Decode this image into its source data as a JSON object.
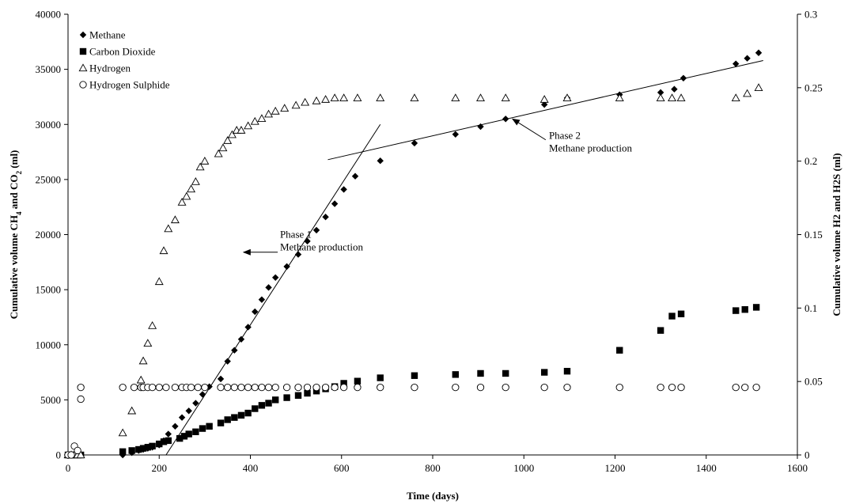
{
  "chart_data": {
    "type": "scatter",
    "title": "",
    "xlabel": "Time (days)",
    "ylabel": "Cumulative volume CH4 and CO2 (ml)",
    "ylabel_parts": [
      "Cumulative volume CH",
      "4",
      " and CO",
      "2",
      " (ml)"
    ],
    "y2label": "Cumulative volume H2 and H2S (ml)",
    "xlim": [
      0,
      1600
    ],
    "ylim": [
      0,
      40000
    ],
    "y2lim": [
      0,
      0.3
    ],
    "xticks": [
      "0",
      "200",
      "400",
      "600",
      "800",
      "1000",
      "1200",
      "1400",
      "1600"
    ],
    "yticks": [
      "0",
      "5000",
      "10000",
      "15000",
      "20000",
      "25000",
      "30000",
      "35000",
      "40000"
    ],
    "y2ticks": [
      "0",
      "0.05",
      "0.1",
      "0.15",
      "0.2",
      "0.25",
      "0.3"
    ],
    "grid": false,
    "legend_position": "top-left",
    "series": [
      {
        "name": "Methane",
        "marker": "diamond",
        "axis": "left",
        "color": "#000000",
        "x": [
          0,
          7,
          14,
          21,
          28,
          120,
          140,
          155,
          165,
          175,
          185,
          200,
          210,
          220,
          235,
          250,
          265,
          280,
          295,
          310,
          335,
          350,
          365,
          380,
          395,
          410,
          425,
          440,
          455,
          480,
          505,
          525,
          545,
          565,
          585,
          605,
          630,
          685,
          760,
          850,
          905,
          960,
          1045,
          1095,
          1210,
          1300,
          1330,
          1350,
          1465,
          1490,
          1515
        ],
        "y": [
          0,
          0,
          0,
          0,
          0,
          0,
          200,
          400,
          500,
          600,
          700,
          900,
          1300,
          1900,
          2600,
          3400,
          4000,
          4700,
          5500,
          6200,
          6900,
          8500,
          9500,
          10500,
          11600,
          13000,
          14100,
          15200,
          16100,
          17100,
          18200,
          19400,
          20400,
          21600,
          22800,
          24100,
          25300,
          26700,
          28300,
          29100,
          29800,
          30500,
          31800,
          32400,
          32700,
          32900,
          33200,
          34200,
          35500,
          36000,
          36500
        ]
      },
      {
        "name": "Carbon Dioxide",
        "marker": "square",
        "axis": "left",
        "color": "#000000",
        "x": [
          0,
          7,
          14,
          21,
          28,
          120,
          140,
          155,
          165,
          175,
          185,
          200,
          210,
          220,
          245,
          255,
          265,
          280,
          295,
          310,
          335,
          350,
          365,
          380,
          395,
          410,
          425,
          440,
          455,
          480,
          505,
          525,
          545,
          565,
          585,
          605,
          635,
          685,
          760,
          850,
          905,
          960,
          1045,
          1095,
          1210,
          1300,
          1325,
          1345,
          1465,
          1485,
          1510
        ],
        "y": [
          0,
          0,
          0,
          0,
          0,
          300,
          400,
          500,
          600,
          700,
          800,
          1000,
          1200,
          1300,
          1500,
          1700,
          1900,
          2100,
          2400,
          2600,
          2900,
          3200,
          3400,
          3600,
          3800,
          4200,
          4500,
          4700,
          5000,
          5200,
          5400,
          5600,
          5800,
          6000,
          6200,
          6500,
          6700,
          7000,
          7200,
          7300,
          7400,
          7400,
          7500,
          7600,
          9500,
          11300,
          12600,
          12800,
          13100,
          13200,
          13400
        ]
      },
      {
        "name": "Hydrogen",
        "marker": "triangle-open",
        "axis": "right",
        "color": "#000000",
        "x": [
          0,
          7,
          14,
          21,
          28,
          120,
          140,
          160,
          165,
          175,
          185,
          200,
          210,
          220,
          235,
          250,
          260,
          270,
          280,
          290,
          300,
          330,
          340,
          350,
          360,
          370,
          380,
          395,
          410,
          425,
          440,
          455,
          475,
          500,
          520,
          545,
          565,
          585,
          605,
          635,
          685,
          760,
          850,
          905,
          960,
          1045,
          1095,
          1210,
          1300,
          1325,
          1345,
          1465,
          1490,
          1515
        ],
        "y": [
          0,
          0,
          0,
          0,
          0,
          0.015,
          0.03,
          0.051,
          0.064,
          0.076,
          0.088,
          0.118,
          0.139,
          0.154,
          0.16,
          0.172,
          0.176,
          0.181,
          0.186,
          0.196,
          0.2,
          0.205,
          0.209,
          0.214,
          0.218,
          0.221,
          0.221,
          0.224,
          0.227,
          0.229,
          0.232,
          0.234,
          0.236,
          0.238,
          0.24,
          0.241,
          0.242,
          0.243,
          0.243,
          0.243,
          0.243,
          0.243,
          0.243,
          0.243,
          0.243,
          0.242,
          0.243,
          0.243,
          0.243,
          0.243,
          0.243,
          0.243,
          0.246,
          0.25
        ]
      },
      {
        "name": "Hydrogen Sulphide",
        "marker": "circle-open",
        "axis": "right",
        "color": "#000000",
        "x": [
          0,
          7,
          14,
          21,
          28,
          28,
          120,
          145,
          160,
          165,
          175,
          185,
          200,
          215,
          235,
          250,
          260,
          270,
          285,
          300,
          335,
          350,
          365,
          380,
          395,
          410,
          425,
          440,
          455,
          480,
          505,
          525,
          545,
          565,
          585,
          605,
          635,
          685,
          760,
          850,
          905,
          960,
          1045,
          1095,
          1210,
          1300,
          1325,
          1345,
          1465,
          1485,
          1510
        ],
        "y": [
          0,
          0,
          0.006,
          0.003,
          0.046,
          0.038,
          0.046,
          0.046,
          0.046,
          0.046,
          0.046,
          0.046,
          0.046,
          0.046,
          0.046,
          0.046,
          0.046,
          0.046,
          0.046,
          0.046,
          0.046,
          0.046,
          0.046,
          0.046,
          0.046,
          0.046,
          0.046,
          0.046,
          0.046,
          0.046,
          0.046,
          0.046,
          0.046,
          0.046,
          0.046,
          0.046,
          0.046,
          0.046,
          0.046,
          0.046,
          0.046,
          0.046,
          0.046,
          0.046,
          0.046,
          0.046,
          0.046,
          0.046,
          0.046,
          0.046,
          0.046
        ]
      }
    ],
    "trendlines": [
      {
        "name": "phase-1-trendline",
        "x": [
          215,
          685
        ],
        "y": [
          0,
          30000
        ]
      },
      {
        "name": "phase-2-trendline",
        "x": [
          570,
          1525
        ],
        "y": [
          26800,
          35800
        ]
      }
    ],
    "annotations": [
      {
        "name": "phase-1-label",
        "lines": [
          "Phase 1",
          "Methane production"
        ],
        "text_at": [
          465,
          19700
        ],
        "arrow_from": [
          460,
          18400
        ],
        "arrow_to": [
          385,
          18400
        ]
      },
      {
        "name": "phase-2-label",
        "lines": [
          "Phase 2",
          "Methane production"
        ],
        "text_at": [
          1055,
          28700
        ],
        "arrow_from": [
          1048,
          28600
        ],
        "arrow_to": [
          975,
          30500
        ]
      }
    ]
  }
}
